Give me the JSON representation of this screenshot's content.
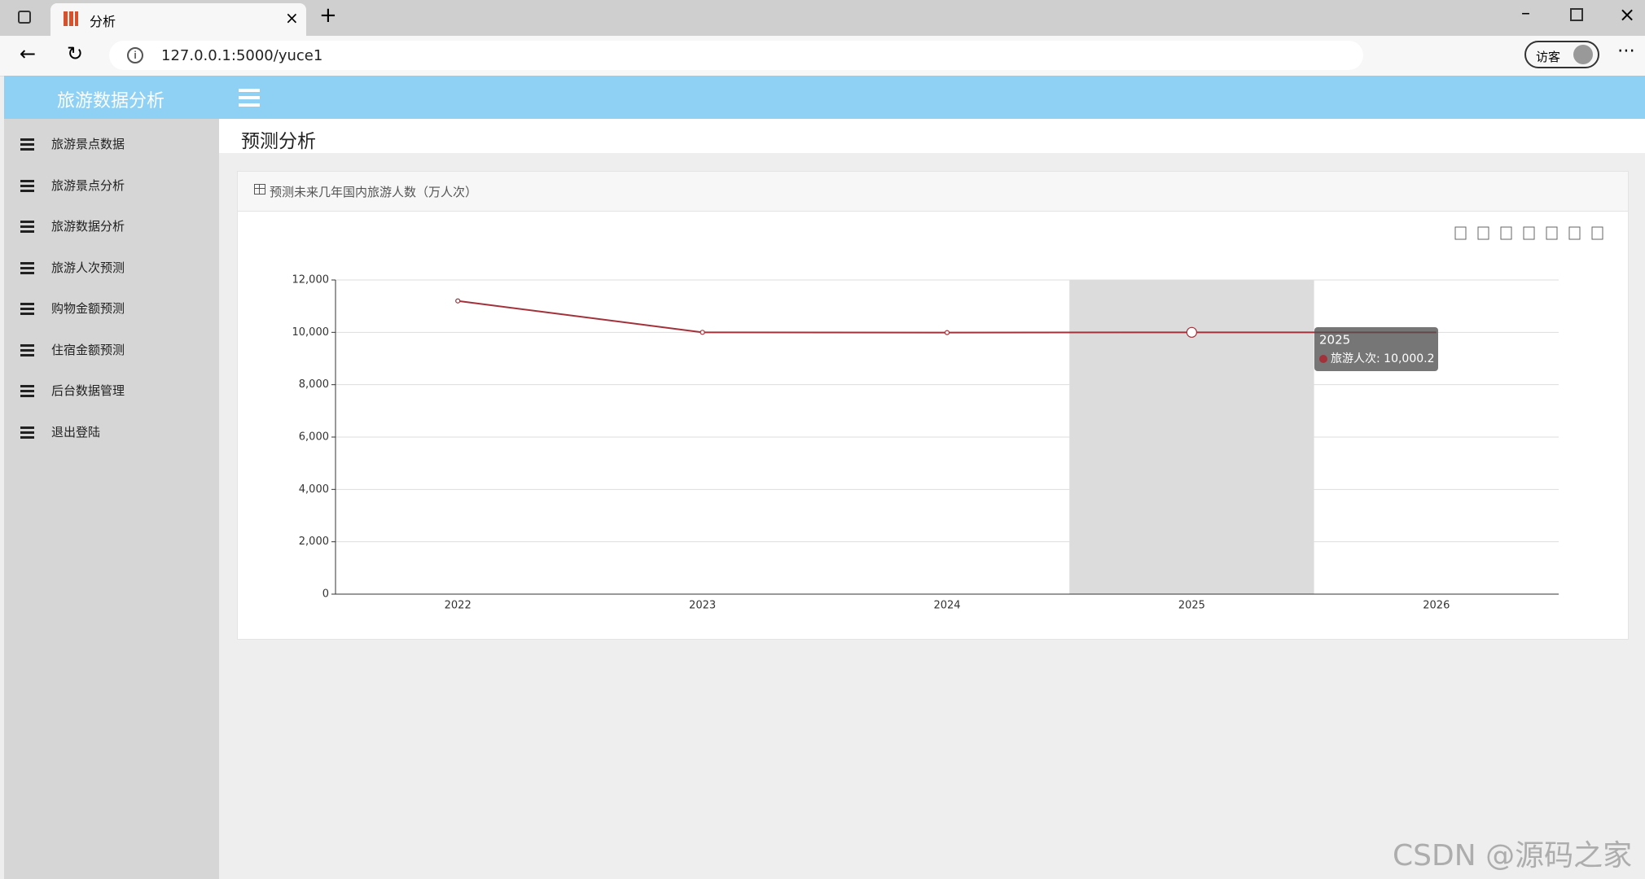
{
  "browser": {
    "tab_title": "分析",
    "url": "127.0.0.1:5000/yuce1",
    "profile": "访客"
  },
  "app": {
    "brand": "旅游数据分析",
    "menu": [
      "旅游景点数据",
      "旅游景点分析",
      "旅游数据分析",
      "旅游人次预测",
      "购物金额预测",
      "住宿金额预测",
      "后台数据管理",
      "退出登陆"
    ],
    "page_title": "预测分析",
    "panel_title": "预测未来几年国内旅游人数（万人次）"
  },
  "chart_data": {
    "type": "line",
    "categories": [
      "2022",
      "2023",
      "2024",
      "2025",
      "2026"
    ],
    "series": [
      {
        "name": "旅游人次",
        "color": "#a3313a",
        "values": [
          11200,
          10000,
          9990,
          10000.2,
          10000
        ]
      }
    ],
    "ylim": [
      0,
      12000
    ],
    "yticks": [
      0,
      {
        "value": 2000,
        "label": "2,000"
      },
      {
        "value": 4000,
        "label": "4,000"
      },
      {
        "value": 6000,
        "label": "6,000"
      },
      {
        "value": 8000,
        "label": "8,000"
      },
      {
        "value": 10000,
        "label": "10,000"
      },
      {
        "value": 12000,
        "label": "12,000"
      }
    ],
    "grid": true,
    "highlight_index": 3,
    "tooltip": {
      "title": "2025",
      "text": "旅游人次: 10,000.2"
    }
  },
  "watermark": "CSDN @源码之家"
}
